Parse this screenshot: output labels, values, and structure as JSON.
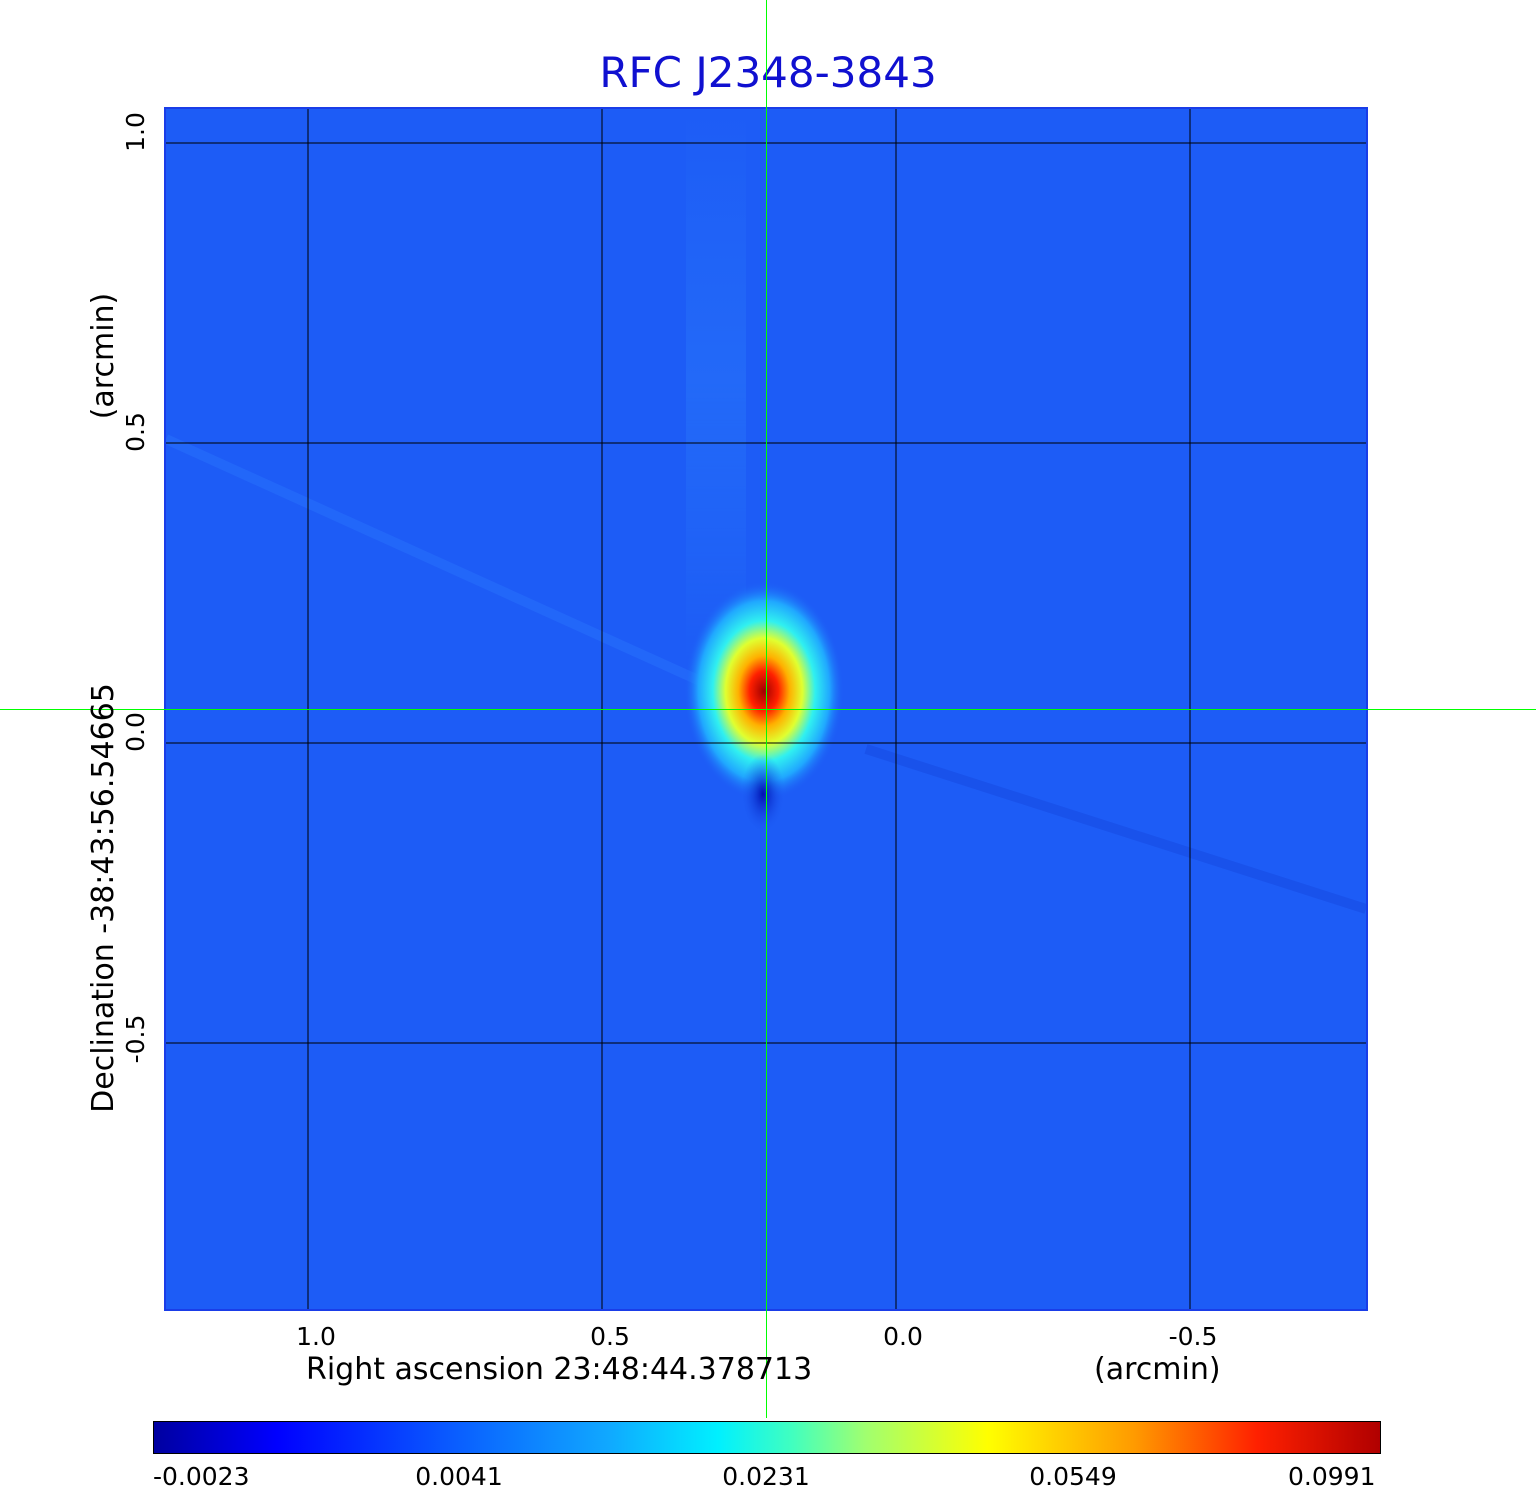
{
  "title": "RFC J2348-3843",
  "x_axis": {
    "label": "Right ascension  23:48:44.378713",
    "unit": "(arcmin)",
    "ticks": [
      "1.0",
      "0.5",
      "0.0",
      "-0.5"
    ]
  },
  "y_axis": {
    "label": "Declination  -38:43:56.54665",
    "unit": "(arcmin)",
    "ticks": [
      "1.0",
      "0.5",
      "0.0",
      "-0.5"
    ]
  },
  "colorbar": {
    "labels": [
      "-0.0023",
      "0.0041",
      "0.0231",
      "0.0549",
      "0.0991"
    ]
  },
  "colors": {
    "title": "#1010d0",
    "background_map": "#1d5cf6",
    "crosshair": "#00ff00",
    "grid": "#000000"
  }
}
